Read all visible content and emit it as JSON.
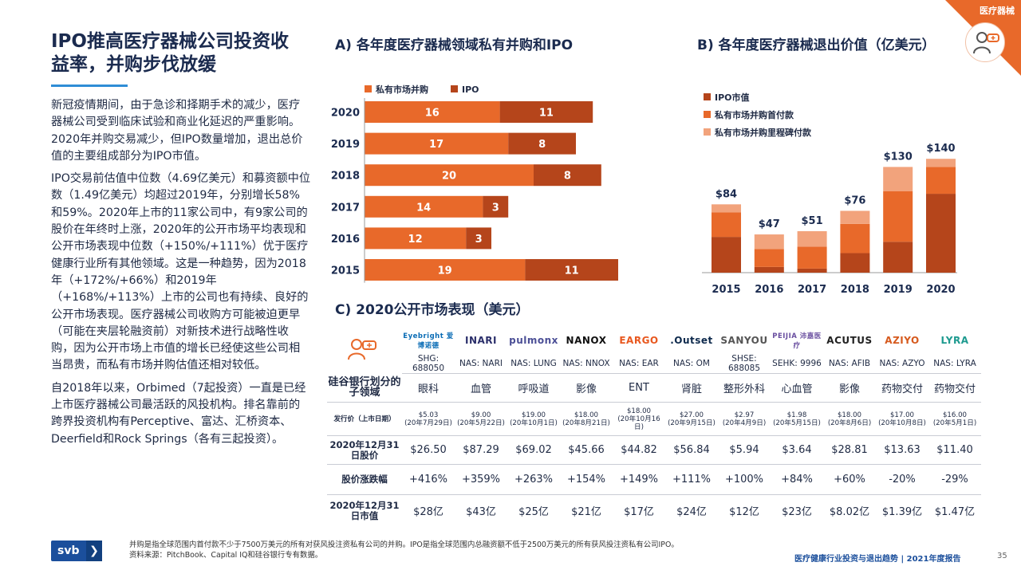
{
  "corner": {
    "label": "医疗器械"
  },
  "title": "IPO推高医疗器械公司投资收益率，并购步伐放缓",
  "body": {
    "p1": "新冠疫情期间，由于急诊和择期手术的减少，医疗器械公司受到临床试验和商业化延迟的严重影响。2020年并购交易减少，但IPO数量增加，退出总价值的主要组成部分为IPO市值。",
    "p2": "IPO交易前估值中位数（4.69亿美元）和募资额中位数（1.49亿美元）均超过2019年，分别增长58%和59%。2020年上市的11家公司中，有9家公司的股价在年终时上涨，2020年的公开市场平均表现和公开市场表现中位数（+150%/+111%）优于医疗健康行业所有其他领域。这是一种趋势，因为2018年（+172%/+66%）和2019年（+168%/+113%）上市的公司也有持续、良好的公开市场表现。医疗器械公司收购方可能被迫更早（可能在夹层轮融资前）对新技术进行战略性收购，因为公开市场上市值的增长已经使这些公司相当昂贵，而私有市场并购估值还相对较低。",
    "p3": "自2018年以来，Orbimed（7起投资）一直是已经上市医疗器械公司最活跃的风投机构。排名靠前的跨界投资机构有Perceptive、富达、汇桥资本、Deerfield和Rock Springs（各有三起投资）。"
  },
  "chart_data": [
    {
      "type": "bar",
      "orientation": "horizontal",
      "stacked": true,
      "title": "A) 各年度医疗器械领域私有并购和IPO",
      "categories": [
        "2020",
        "2019",
        "2018",
        "2017",
        "2016",
        "2015"
      ],
      "series": [
        {
          "name": "私有市场并购",
          "color": "#e8692a",
          "values": [
            16,
            17,
            20,
            14,
            12,
            19
          ]
        },
        {
          "name": "IPO",
          "color": "#b5451b",
          "values": [
            11,
            8,
            8,
            3,
            3,
            11
          ]
        }
      ],
      "legend": "top-left"
    },
    {
      "type": "bar",
      "orientation": "vertical",
      "stacked": true,
      "title": "B) 各年度医疗器械退出价值（亿美元）",
      "categories": [
        "2015",
        "2016",
        "2017",
        "2018",
        "2019",
        "2020"
      ],
      "totals": [
        84,
        47,
        51,
        76,
        130,
        140
      ],
      "total_labels": [
        "$84",
        "$47",
        "$51",
        "$76",
        "$130",
        "$140"
      ],
      "series": [
        {
          "name": "IPO市值",
          "color": "#b5451b",
          "values": [
            44,
            7,
            5,
            24,
            38,
            97
          ]
        },
        {
          "name": "私有市场并购首付款",
          "color": "#e8692a",
          "values": [
            30,
            22,
            27,
            36,
            62,
            33
          ]
        },
        {
          "name": "私有市场并购里程碑付款",
          "color": "#f2a37c",
          "values": [
            10,
            18,
            19,
            16,
            30,
            10
          ]
        }
      ],
      "ylim": [
        0,
        140
      ],
      "legend": "top-left"
    },
    {
      "type": "table",
      "title": "C) 2020公开市场表现（美元）",
      "row_headers": {
        "subsector": "硅谷银行划分的子领域",
        "issue": "发行价（上市日期）",
        "price": "2020年12月31日股价",
        "change": "股价涨跌幅",
        "mcap": "2020年12月31日市值"
      },
      "companies": [
        {
          "logo": "Eyebright 爱博诺德",
          "ticker": "SHG: 688050",
          "subsector": "眼科",
          "issue_price": "$5.03",
          "issue_date": "(20年7月29日)",
          "price": "$26.50",
          "change": "+416%",
          "mcap": "$28亿",
          "logo_color": "#0a6cb5"
        },
        {
          "logo": "INARI",
          "ticker": "NAS: NARI",
          "subsector": "血管",
          "issue_price": "$9.00",
          "issue_date": "(20年5月22日)",
          "price": "$87.29",
          "change": "+359%",
          "mcap": "$43亿",
          "logo_color": "#2b2f6b"
        },
        {
          "logo": "pulmonx",
          "ticker": "NAS: LUNG",
          "subsector": "呼吸道",
          "issue_price": "$19.00",
          "issue_date": "(20年10月1日)",
          "price": "$69.02",
          "change": "+263%",
          "mcap": "$25亿",
          "logo_color": "#4b4f96"
        },
        {
          "logo": "NANOX",
          "ticker": "NAS: NNOX",
          "subsector": "影像",
          "issue_price": "$18.00",
          "issue_date": "(20年8月21日)",
          "price": "$45.66",
          "change": "+154%",
          "mcap": "$21亿",
          "logo_color": "#111111"
        },
        {
          "logo": "EARGO",
          "ticker": "NAS: EAR",
          "subsector": "ENT",
          "issue_price": "$18.00",
          "issue_date": "(20年10月16日)",
          "price": "$44.82",
          "change": "+149%",
          "mcap": "$17亿",
          "logo_color": "#e8581f"
        },
        {
          "logo": ".Outset",
          "ticker": "NAS: OM",
          "subsector": "肾脏",
          "issue_price": "$27.00",
          "issue_date": "(20年9月15日)",
          "price": "$56.84",
          "change": "+111%",
          "mcap": "$24亿",
          "logo_color": "#0e2a4d"
        },
        {
          "logo": "SANYOU",
          "ticker": "SHSE: 688085",
          "subsector": "整形外科",
          "issue_price": "$2.97",
          "issue_date": "(20年4月9日)",
          "price": "$5.94",
          "change": "+100%",
          "mcap": "$12亿",
          "logo_color": "#555555"
        },
        {
          "logo": "PEIJIA 沛嘉医疗",
          "ticker": "SEHK: 9996",
          "subsector": "心血管",
          "issue_price": "$1.98",
          "issue_date": "(20年5月15日)",
          "price": "$3.64",
          "change": "+84%",
          "mcap": "$23亿",
          "logo_color": "#6a4fa0"
        },
        {
          "logo": "ACUTUS",
          "ticker": "NAS: AFIB",
          "subsector": "影像",
          "issue_price": "$18.00",
          "issue_date": "(20年8月6日)",
          "price": "$28.81",
          "change": "+60%",
          "mcap": "$8.02亿",
          "logo_color": "#222222"
        },
        {
          "logo": "AZIYO",
          "ticker": "NAS: AZYO",
          "subsector": "药物交付",
          "issue_price": "$17.00",
          "issue_date": "(20年10月8日)",
          "price": "$13.63",
          "change": "-20%",
          "mcap": "$1.39亿",
          "logo_color": "#d65a1e"
        },
        {
          "logo": "LYRA",
          "ticker": "NAS: LYRA",
          "subsector": "药物交付",
          "issue_price": "$16.00",
          "issue_date": "(20年5月1日)",
          "price": "$11.40",
          "change": "-29%",
          "mcap": "$1.47亿",
          "logo_color": "#1d9a8f"
        }
      ]
    }
  ],
  "footer": {
    "badge": "svb",
    "badge_arrow": "❯",
    "note1": "并购是指全球范围内首付款不少于7500万美元的所有对获风投注资私有公司的并购。IPO是指全球范围内总融资额不低于2500万美元的所有获风投注资私有公司IPO。",
    "note2": "资料来源：PitchBook、Capital IQ和硅谷银行专有数据。",
    "report": "医疗健康行业投资与退出趋势 | 2021年度报告",
    "page": "35"
  },
  "colors": {
    "accent": "#e8692a",
    "dark_orange": "#b5451b",
    "light_orange": "#f2a37c",
    "navy": "#1b2b4f",
    "blue": "#2f8dd6"
  }
}
